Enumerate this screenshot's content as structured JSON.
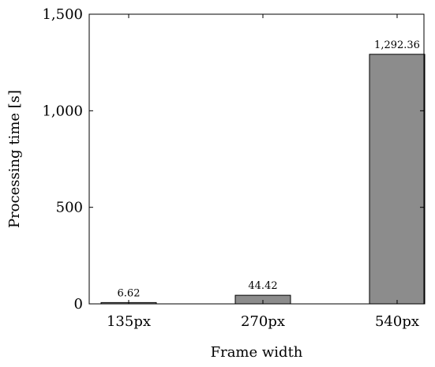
{
  "chart_data": {
    "type": "bar",
    "title": "",
    "xlabel": "Frame width",
    "ylabel": "Processing time [s]",
    "categories": [
      "135px",
      "270px",
      "540px"
    ],
    "values": [
      6.62,
      44.42,
      1292.36
    ],
    "data_labels": [
      "6.62",
      "44.42",
      "1,292.36"
    ],
    "ylim": [
      0,
      1500
    ],
    "yticks": [
      0,
      500,
      1000,
      1500
    ],
    "ytick_labels": [
      "0",
      "500",
      "1,000",
      "1,500"
    ],
    "grid": false,
    "legend": "none",
    "bar_color": "#8c8c8c",
    "bar_edge_color": "#000000"
  }
}
